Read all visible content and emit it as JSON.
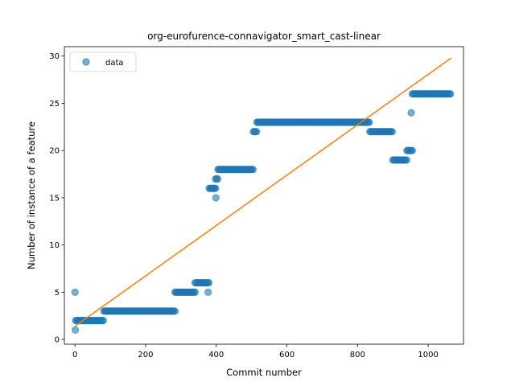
{
  "chart_data": {
    "type": "scatter",
    "title": "org-eurofurence-connavigator_smart_cast-linear",
    "xlabel": "Commit number",
    "ylabel": "Number of instance of a feature",
    "xlim": [
      -30,
      1100
    ],
    "ylim": [
      -0.5,
      31
    ],
    "xticks": [
      0,
      200,
      400,
      600,
      800,
      1000
    ],
    "yticks": [
      0,
      5,
      10,
      15,
      20,
      25,
      30
    ],
    "grid": false,
    "legend": {
      "location": "top-left",
      "entries": [
        "data"
      ]
    },
    "colors": {
      "data": "#1f77b4",
      "fit": "#ff7f0e"
    },
    "series": [
      {
        "name": "data",
        "kind": "scatter",
        "segments": [
          {
            "x_start": 0,
            "x_end": 2,
            "y": 5
          },
          {
            "x_start": 1,
            "x_end": 1,
            "y": 1
          },
          {
            "x_start": 2,
            "x_end": 82,
            "y": 2
          },
          {
            "x_start": 82,
            "x_end": 283,
            "y": 3
          },
          {
            "x_start": 283,
            "x_end": 340,
            "y": 5
          },
          {
            "x_start": 340,
            "x_end": 380,
            "y": 6
          },
          {
            "x_start": 377,
            "x_end": 377,
            "y": 5
          },
          {
            "x_start": 380,
            "x_end": 398,
            "y": 16
          },
          {
            "x_start": 398,
            "x_end": 405,
            "y": 17
          },
          {
            "x_start": 399,
            "x_end": 399,
            "y": 15
          },
          {
            "x_start": 405,
            "x_end": 505,
            "y": 18
          },
          {
            "x_start": 505,
            "x_end": 515,
            "y": 22
          },
          {
            "x_start": 515,
            "x_end": 835,
            "y": 23
          },
          {
            "x_start": 835,
            "x_end": 900,
            "y": 22
          },
          {
            "x_start": 900,
            "x_end": 940,
            "y": 19
          },
          {
            "x_start": 940,
            "x_end": 955,
            "y": 20
          },
          {
            "x_start": 952,
            "x_end": 952,
            "y": 24
          },
          {
            "x_start": 955,
            "x_end": 1065,
            "y": 26
          }
        ]
      },
      {
        "kind": "line",
        "x": [
          0,
          1065
        ],
        "y": [
          1.4,
          29.8
        ]
      }
    ]
  }
}
